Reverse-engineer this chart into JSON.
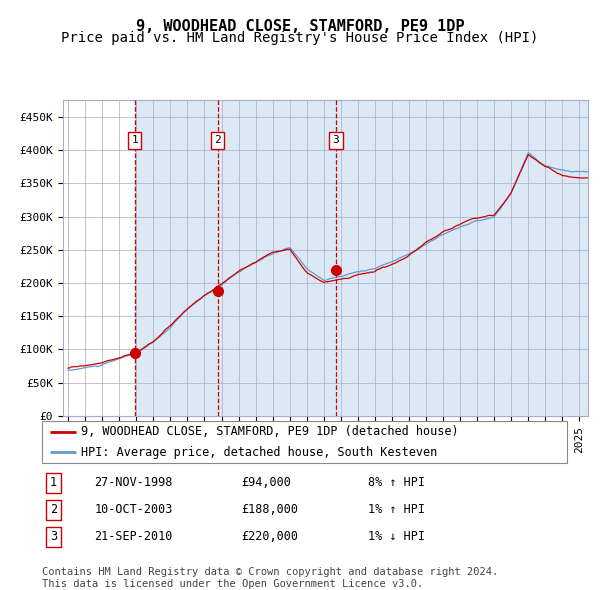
{
  "title": "9, WOODHEAD CLOSE, STAMFORD, PE9 1DP",
  "subtitle": "Price paid vs. HM Land Registry's House Price Index (HPI)",
  "ylim": [
    0,
    475000
  ],
  "yticks": [
    0,
    50000,
    100000,
    150000,
    200000,
    250000,
    300000,
    350000,
    400000,
    450000
  ],
  "ytick_labels": [
    "£0",
    "£50K",
    "£100K",
    "£150K",
    "£200K",
    "£250K",
    "£300K",
    "£350K",
    "£400K",
    "£450K"
  ],
  "xstart": 1994.7,
  "xend": 2025.5,
  "sale_dates": [
    1998.9,
    2003.78,
    2010.72
  ],
  "sale_prices": [
    94000,
    188000,
    220000
  ],
  "sale_labels": [
    "1",
    "2",
    "3"
  ],
  "vline_color": "#cc0000",
  "sale_point_color": "#cc0000",
  "hpi_line_color": "#6699cc",
  "price_line_color": "#cc0000",
  "bg_band_color": "#dce9f5",
  "grid_color": "#aaaacc",
  "legend_entries": [
    "9, WOODHEAD CLOSE, STAMFORD, PE9 1DP (detached house)",
    "HPI: Average price, detached house, South Kesteven"
  ],
  "table_rows": [
    [
      "1",
      "27-NOV-1998",
      "£94,000",
      "8% ↑ HPI"
    ],
    [
      "2",
      "10-OCT-2003",
      "£188,000",
      "1% ↑ HPI"
    ],
    [
      "3",
      "21-SEP-2010",
      "£220,000",
      "1% ↓ HPI"
    ]
  ],
  "footer": "Contains HM Land Registry data © Crown copyright and database right 2024.\nThis data is licensed under the Open Government Licence v3.0.",
  "title_fontsize": 11,
  "subtitle_fontsize": 10,
  "tick_fontsize": 8,
  "legend_fontsize": 8.5,
  "table_fontsize": 8.5,
  "footer_fontsize": 7.5
}
